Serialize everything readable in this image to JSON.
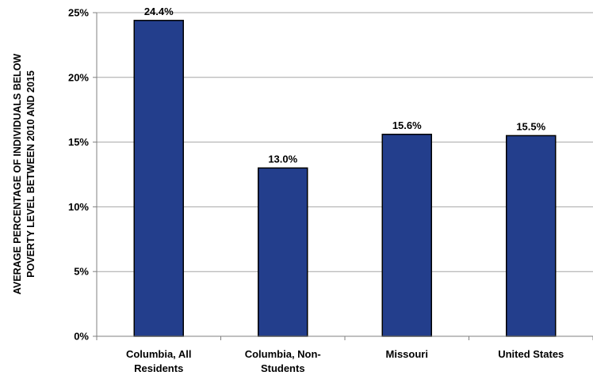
{
  "chart_data": {
    "type": "bar",
    "categories": [
      [
        "Columbia, All",
        "Residents"
      ],
      [
        "Columbia, Non-",
        "Students"
      ],
      [
        "Missouri"
      ],
      [
        "United States"
      ]
    ],
    "values": [
      24.4,
      13.0,
      15.6,
      15.5
    ],
    "data_labels": [
      "24.4%",
      "13.0%",
      "15.6%",
      "15.5%"
    ],
    "ylabel": [
      "AVERAGE PERCENTAGE OF INDIVIDUALS BELOW",
      "POVERTY LEVEL BETWEEN 2010 AND 2015"
    ],
    "ylim": [
      0,
      25
    ],
    "yticks": [
      0,
      5,
      10,
      15,
      20,
      25
    ],
    "ytick_labels": [
      "0%",
      "5%",
      "10%",
      "15%",
      "20%",
      "25%"
    ],
    "grid": true,
    "legend": "none",
    "colors": {
      "bar_fill": "#233e8c",
      "bar_stroke": "#000000",
      "grid": "#a6a6a6",
      "axis": "#808080"
    }
  }
}
